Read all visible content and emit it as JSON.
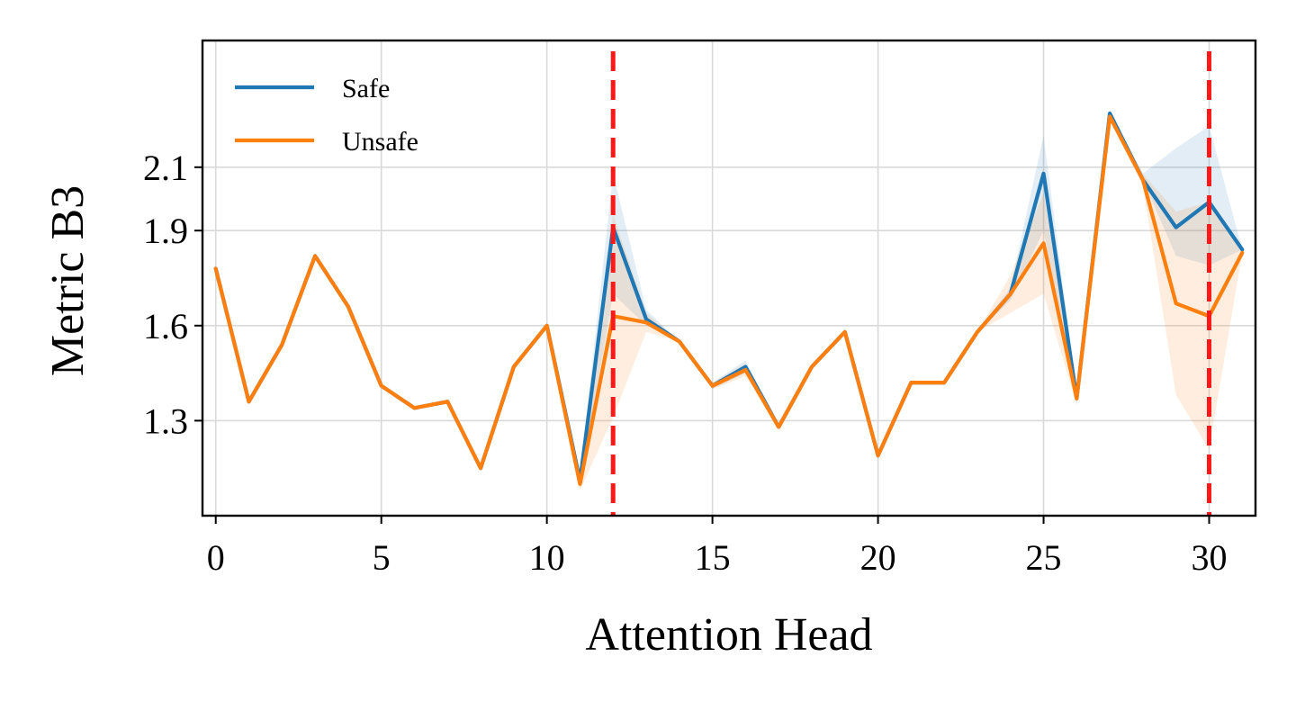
{
  "chart_data": {
    "type": "line",
    "xlabel": "Attention Head",
    "ylabel": "Metric B3",
    "xlim": [
      -0.4,
      31.4
    ],
    "ylim": [
      1.0,
      2.5
    ],
    "x_ticks": [
      0,
      5,
      10,
      15,
      20,
      25,
      30
    ],
    "y_ticks": [
      1.3,
      1.6,
      1.9,
      2.1
    ],
    "y_tick_labels": [
      "1.3",
      "1.6",
      "1.9",
      "2.1"
    ],
    "grid": true,
    "legend": "top-left",
    "x": [
      0,
      1,
      2,
      3,
      4,
      5,
      6,
      7,
      8,
      9,
      10,
      11,
      12,
      13,
      14,
      15,
      16,
      17,
      18,
      19,
      20,
      21,
      22,
      23,
      24,
      25,
      26,
      27,
      28,
      29,
      30,
      31
    ],
    "series": [
      {
        "name": "Safe",
        "color": "#1f77b4",
        "values": [
          1.78,
          1.36,
          1.54,
          1.82,
          1.66,
          1.41,
          1.34,
          1.36,
          1.15,
          1.47,
          1.6,
          1.11,
          1.91,
          1.62,
          1.55,
          1.41,
          1.47,
          1.28,
          1.47,
          1.58,
          1.19,
          1.42,
          1.42,
          1.58,
          1.7,
          2.08,
          1.37,
          2.27,
          2.06,
          1.91,
          1.99,
          1.84
        ],
        "band_lower": [
          1.78,
          1.36,
          1.54,
          1.82,
          1.66,
          1.41,
          1.34,
          1.36,
          1.15,
          1.47,
          1.6,
          1.09,
          1.7,
          1.6,
          1.55,
          1.4,
          1.45,
          1.28,
          1.47,
          1.58,
          1.19,
          1.42,
          1.42,
          1.58,
          1.68,
          1.9,
          1.35,
          2.26,
          2.06,
          1.82,
          1.79,
          1.84
        ],
        "band_upper": [
          1.78,
          1.36,
          1.54,
          1.82,
          1.66,
          1.41,
          1.34,
          1.36,
          1.15,
          1.47,
          1.6,
          1.13,
          2.08,
          1.65,
          1.55,
          1.42,
          1.49,
          1.28,
          1.47,
          1.58,
          1.19,
          1.42,
          1.42,
          1.58,
          1.72,
          2.2,
          1.39,
          2.28,
          2.08,
          2.16,
          2.23,
          1.84
        ]
      },
      {
        "name": "Unsafe",
        "color": "#ff7f0e",
        "values": [
          1.78,
          1.36,
          1.54,
          1.82,
          1.66,
          1.41,
          1.34,
          1.36,
          1.15,
          1.47,
          1.6,
          1.1,
          1.63,
          1.61,
          1.55,
          1.41,
          1.46,
          1.28,
          1.47,
          1.58,
          1.19,
          1.42,
          1.42,
          1.58,
          1.7,
          1.86,
          1.37,
          2.26,
          2.06,
          1.67,
          1.63,
          1.83
        ],
        "band_lower": [
          1.78,
          1.36,
          1.54,
          1.82,
          1.66,
          1.41,
          1.34,
          1.36,
          1.15,
          1.47,
          1.6,
          1.08,
          1.31,
          1.58,
          1.55,
          1.4,
          1.44,
          1.28,
          1.47,
          1.58,
          1.19,
          1.42,
          1.42,
          1.58,
          1.64,
          1.7,
          1.35,
          2.25,
          2.04,
          1.38,
          1.21,
          1.83
        ],
        "band_upper": [
          1.78,
          1.36,
          1.54,
          1.82,
          1.66,
          1.41,
          1.34,
          1.36,
          1.15,
          1.47,
          1.6,
          1.12,
          1.95,
          1.64,
          1.55,
          1.42,
          1.48,
          1.28,
          1.47,
          1.58,
          1.19,
          1.42,
          1.42,
          1.58,
          1.76,
          2.02,
          1.39,
          2.27,
          2.08,
          1.96,
          1.99,
          1.83
        ]
      }
    ],
    "vlines": [
      {
        "x": 12,
        "color": "#ff1a1a",
        "style": "dashed"
      },
      {
        "x": 30,
        "color": "#ff1a1a",
        "style": "dashed"
      }
    ]
  }
}
